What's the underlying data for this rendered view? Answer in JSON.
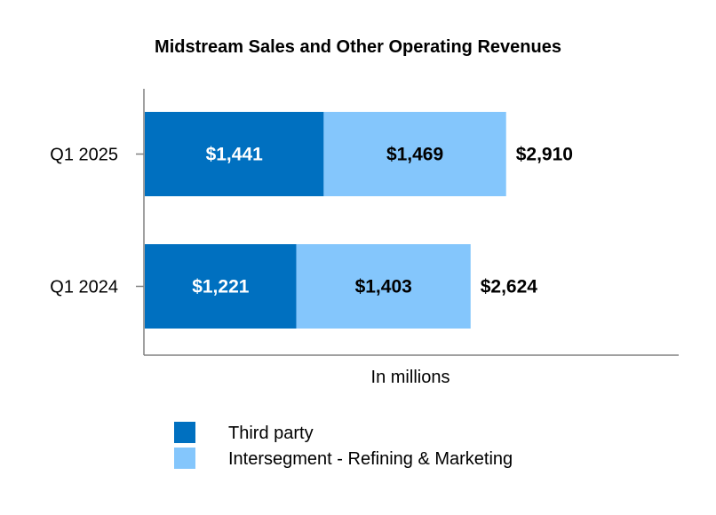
{
  "chart_data": {
    "type": "bar",
    "orientation": "horizontal",
    "stacked": true,
    "title": "Midstream Sales and Other Operating Revenues",
    "xlabel": "In millions",
    "ylabel": "",
    "categories": [
      "Q1 2025",
      "Q1 2024"
    ],
    "series": [
      {
        "name": "Third party",
        "color": "#0070C0",
        "label_color": "#FFFFFF",
        "values": [
          1441,
          1221
        ],
        "labels": [
          "$1,441",
          "$1,221"
        ]
      },
      {
        "name": "Intersegment - Refining & Marketing",
        "color": "#84C6FC",
        "label_color": "#000000",
        "values": [
          1469,
          1403
        ],
        "labels": [
          "$1,469",
          "$1,403"
        ]
      }
    ],
    "totals": [
      2910,
      2624
    ],
    "total_labels": [
      "$2,910",
      "$2,624"
    ],
    "xlim": [
      0,
      4300
    ],
    "grid": false,
    "legend_position": "bottom"
  }
}
